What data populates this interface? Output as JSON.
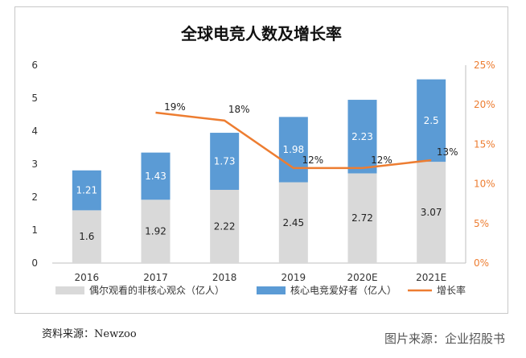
{
  "chart_data": {
    "type": "bar",
    "title": "全球电竞人数及增长率",
    "categories": [
      "2016",
      "2017",
      "2018",
      "2019",
      "2020E",
      "2021E"
    ],
    "series": [
      {
        "name": "偶尔观看的非核心观众（亿人）",
        "type": "bar",
        "stack": "total",
        "values": [
          1.6,
          1.92,
          2.22,
          2.45,
          2.72,
          3.07
        ],
        "labels": [
          "1.6",
          "1.92",
          "2.22",
          "2.45",
          "2.72",
          "3.07"
        ],
        "color": "#d9d9d9"
      },
      {
        "name": "核心电竞爱好者（亿人）",
        "type": "bar",
        "stack": "total",
        "values": [
          1.21,
          1.43,
          1.73,
          1.98,
          2.23,
          2.5
        ],
        "labels": [
          "1.21",
          "1.43",
          "1.73",
          "1.98",
          "2.23",
          "2.5"
        ],
        "color": "#5b9bd5"
      },
      {
        "name": "增长率",
        "type": "line",
        "axis": "right",
        "values": [
          null,
          19,
          18,
          12,
          12,
          13
        ],
        "labels": [
          "",
          "19%",
          "18%",
          "12%",
          "12%",
          "13%"
        ],
        "color": "#ed7d31"
      }
    ],
    "ylim": [
      0,
      6
    ],
    "yticks": [
      "0",
      "1",
      "2",
      "3",
      "4",
      "5",
      "6"
    ],
    "y2lim": [
      0,
      25
    ],
    "y2ticks": [
      "0%",
      "5%",
      "10%",
      "15%",
      "20%",
      "25%"
    ],
    "grid": false,
    "legend": "bottom"
  },
  "source": "资料来源：Newzoo",
  "credit": "图片来源：企业招股书"
}
